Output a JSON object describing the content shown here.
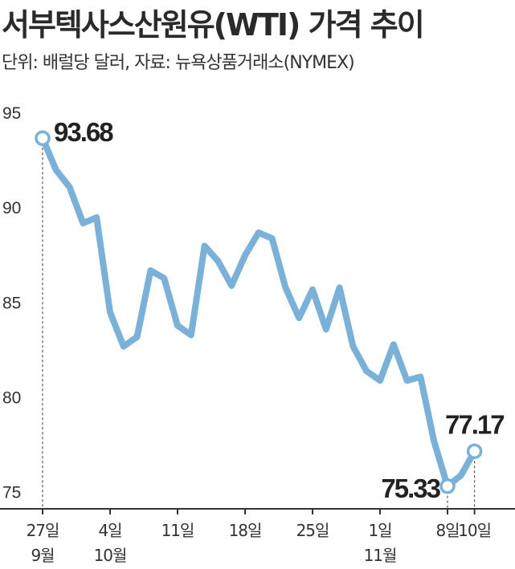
{
  "header": {
    "title": "서부텍사스산원유(WTI) 가격 추이",
    "subtitle": "단위: 배럴당 달러, 자료: 뉴욕상품거래소(NYMEX)"
  },
  "colors": {
    "line": "#79b1d9",
    "axis": "#333333",
    "dash": "#555555"
  },
  "chart_data": {
    "type": "line",
    "title": "서부텍사스산원유(WTI) 가격 추이",
    "ylim": [
      75,
      95
    ],
    "y_ticks": [
      95,
      90,
      85,
      80,
      75
    ],
    "x_tick_labels": [
      {
        "index": 0,
        "line1": "27일",
        "line2": "9월"
      },
      {
        "index": 5,
        "line1": "4일",
        "line2": "10월"
      },
      {
        "index": 10,
        "line1": "11일",
        "line2": ""
      },
      {
        "index": 15,
        "line1": "18일",
        "line2": ""
      },
      {
        "index": 20,
        "line1": "25일",
        "line2": ""
      },
      {
        "index": 25,
        "line1": "1일",
        "line2": "11월"
      },
      {
        "index": 30,
        "line1": "8일",
        "line2": ""
      },
      {
        "index": 32,
        "line1": "10일",
        "line2": ""
      }
    ],
    "series": [
      {
        "values": [
          93.68,
          92.0,
          91.1,
          89.2,
          89.5,
          84.5,
          82.7,
          83.2,
          86.7,
          86.3,
          83.8,
          83.3,
          88.0,
          87.2,
          85.9,
          87.5,
          88.7,
          88.4,
          85.8,
          84.2,
          85.7,
          83.6,
          85.8,
          82.7,
          81.4,
          80.9,
          82.8,
          80.9,
          81.1,
          77.7,
          75.33,
          75.9,
          77.17
        ]
      }
    ],
    "annotations": [
      {
        "index": 0,
        "label": "93.68"
      },
      {
        "index": 30,
        "label": "75.33"
      },
      {
        "index": 32,
        "label": "77.17"
      }
    ],
    "grid": false
  }
}
